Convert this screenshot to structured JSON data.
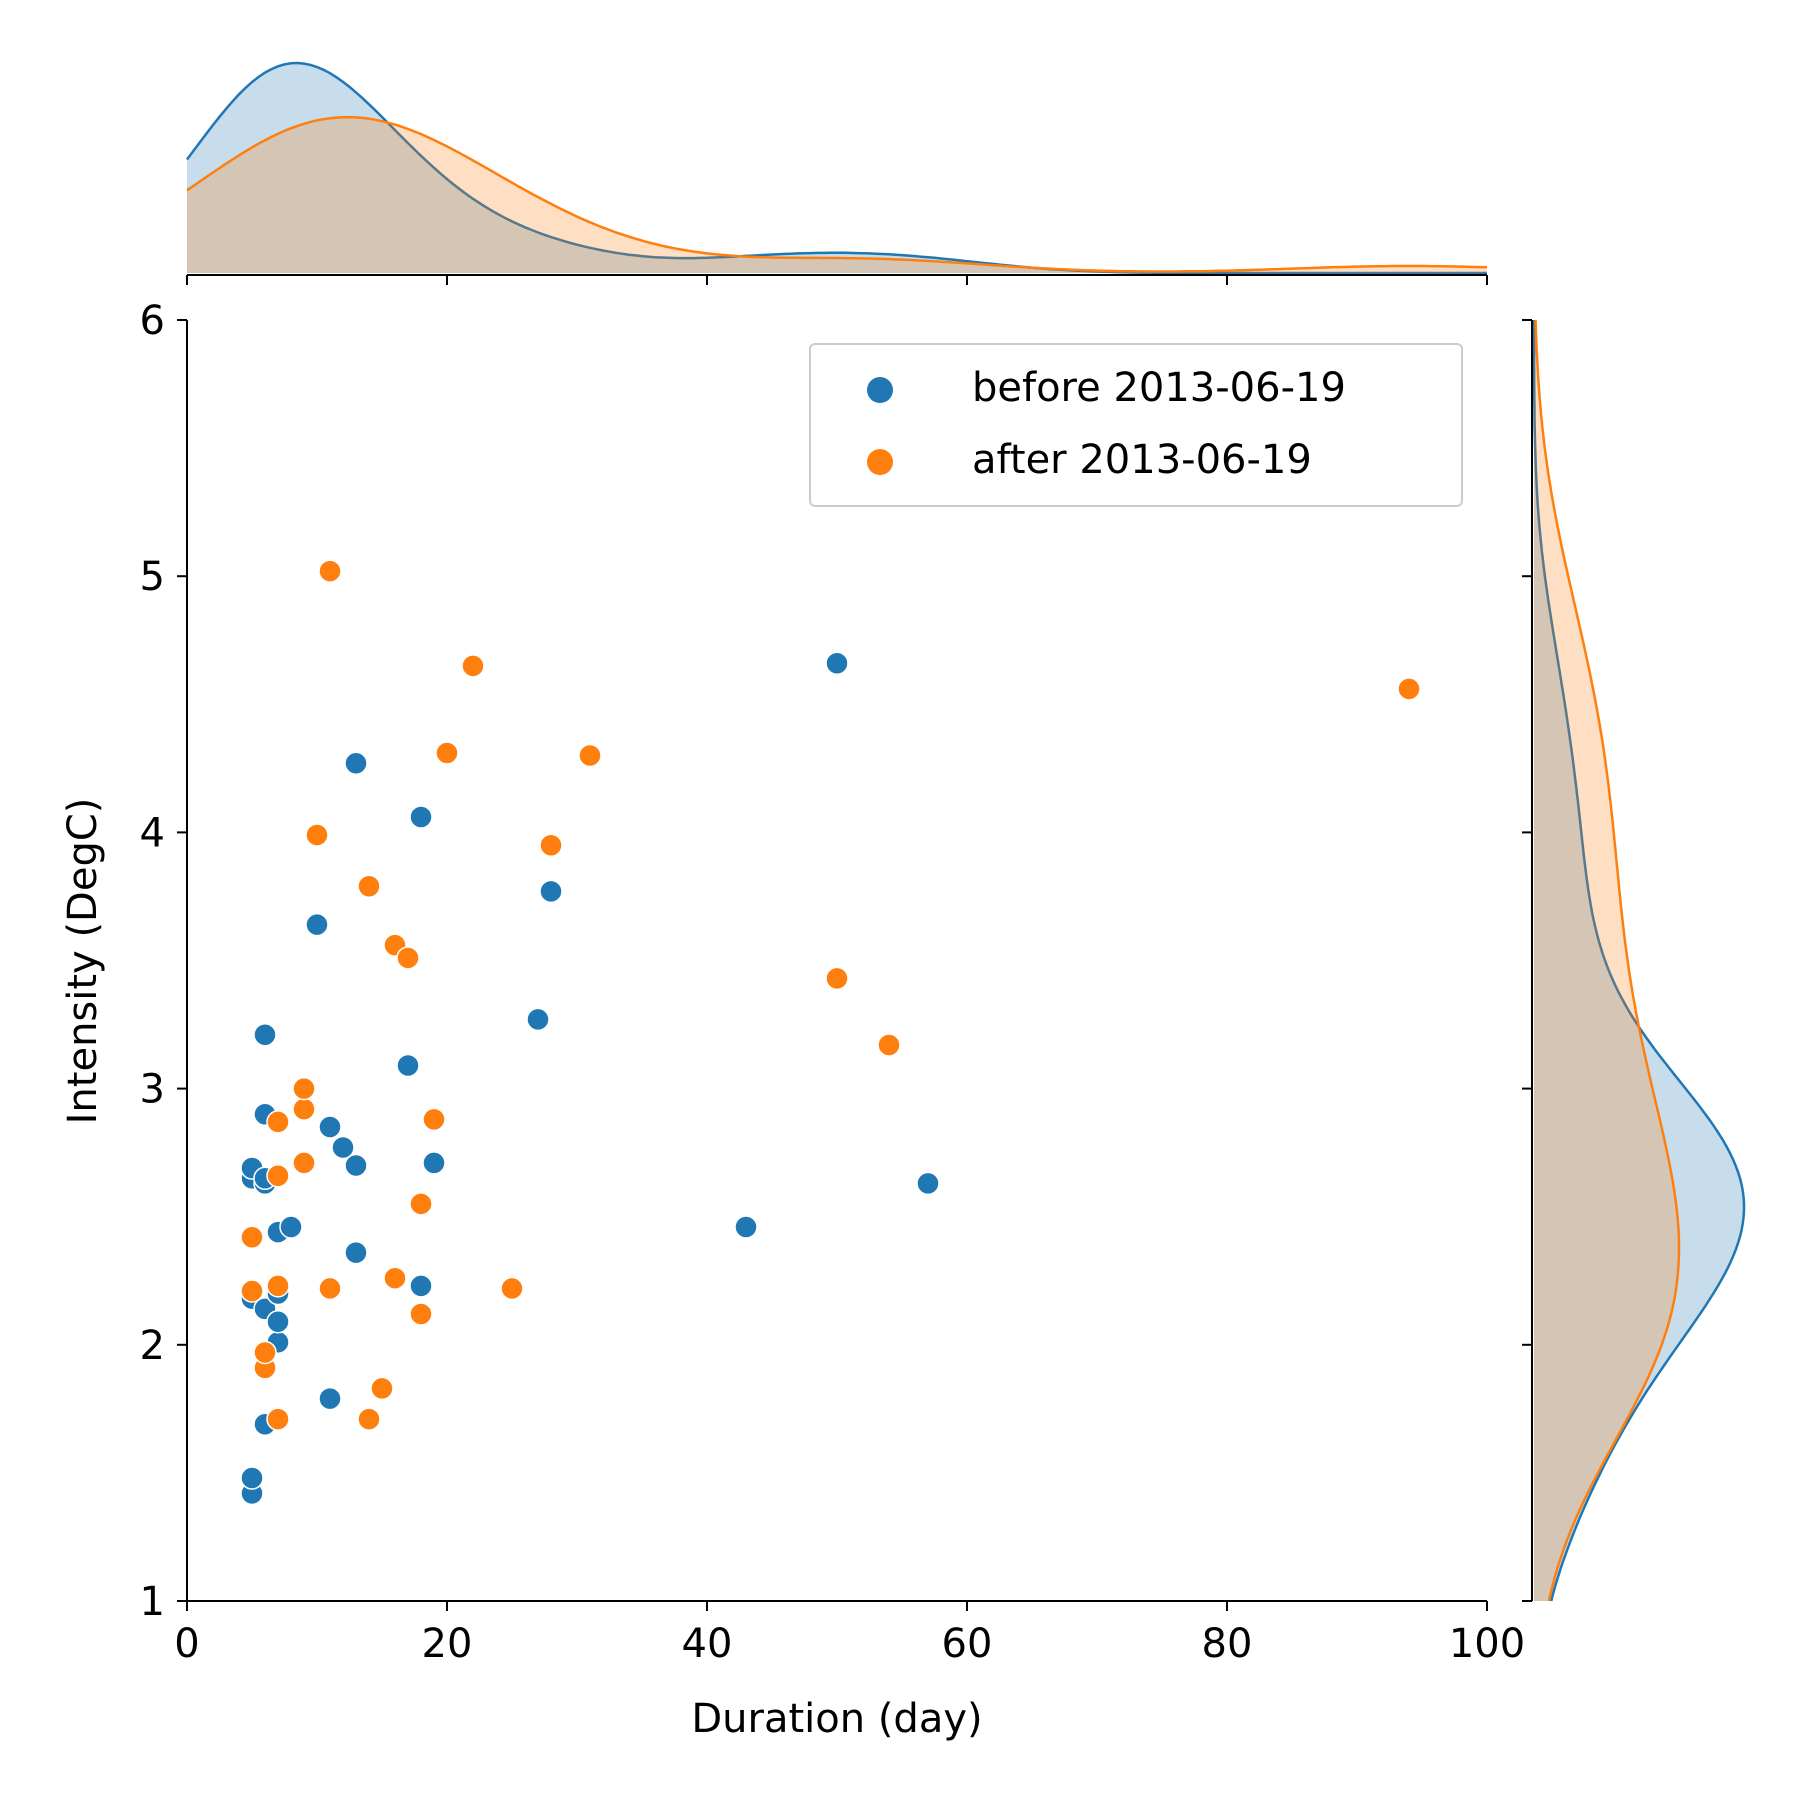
{
  "chart_data": {
    "type": "scatter",
    "xlabel": "Duration (day)",
    "ylabel": "Intensity (DegC)",
    "xlim": [
      0,
      100
    ],
    "ylim": [
      1,
      6
    ],
    "xticks": [
      "0",
      "20",
      "40",
      "60",
      "80",
      "100"
    ],
    "yticks": [
      "1",
      "2",
      "3",
      "4",
      "5",
      "6"
    ],
    "grid": false,
    "legend_position": "top-right",
    "marginals": "kde",
    "series": [
      {
        "name": "before 2013-06-19",
        "color": "#1f77b4",
        "points": [
          [
            5,
            1.42
          ],
          [
            5,
            1.48
          ],
          [
            5,
            2.18
          ],
          [
            5,
            2.65
          ],
          [
            5,
            2.69
          ],
          [
            6,
            1.69
          ],
          [
            6,
            2.14
          ],
          [
            6,
            2.63
          ],
          [
            6,
            2.65
          ],
          [
            6,
            2.9
          ],
          [
            6,
            3.21
          ],
          [
            7,
            2.01
          ],
          [
            7,
            2.09
          ],
          [
            7,
            2.2
          ],
          [
            7,
            2.44
          ],
          [
            8,
            2.46
          ],
          [
            10,
            3.64
          ],
          [
            11,
            1.79
          ],
          [
            11,
            2.85
          ],
          [
            12,
            2.77
          ],
          [
            13,
            2.36
          ],
          [
            13,
            2.7
          ],
          [
            13,
            4.27
          ],
          [
            17,
            3.09
          ],
          [
            18,
            2.23
          ],
          [
            18,
            4.06
          ],
          [
            19,
            2.71
          ],
          [
            27,
            3.27
          ],
          [
            28,
            3.77
          ],
          [
            43,
            2.46
          ],
          [
            50,
            4.66
          ],
          [
            57,
            2.63
          ]
        ]
      },
      {
        "name": "after 2013-06-19",
        "color": "#ff7f0e",
        "points": [
          [
            5,
            2.21
          ],
          [
            5,
            2.42
          ],
          [
            6,
            1.91
          ],
          [
            6,
            1.97
          ],
          [
            7,
            1.71
          ],
          [
            7,
            2.23
          ],
          [
            7,
            2.66
          ],
          [
            7,
            2.87
          ],
          [
            9,
            2.71
          ],
          [
            9,
            2.92
          ],
          [
            9,
            3.0
          ],
          [
            10,
            3.99
          ],
          [
            11,
            2.22
          ],
          [
            11,
            5.02
          ],
          [
            14,
            1.71
          ],
          [
            14,
            3.79
          ],
          [
            15,
            1.83
          ],
          [
            16,
            2.26
          ],
          [
            16,
            3.56
          ],
          [
            17,
            3.51
          ],
          [
            18,
            2.12
          ],
          [
            18,
            2.55
          ],
          [
            19,
            2.88
          ],
          [
            20,
            4.31
          ],
          [
            22,
            4.65
          ],
          [
            25,
            2.22
          ],
          [
            28,
            3.95
          ],
          [
            31,
            4.3
          ],
          [
            50,
            3.43
          ],
          [
            54,
            3.17
          ],
          [
            94,
            4.56
          ]
        ]
      }
    ]
  }
}
